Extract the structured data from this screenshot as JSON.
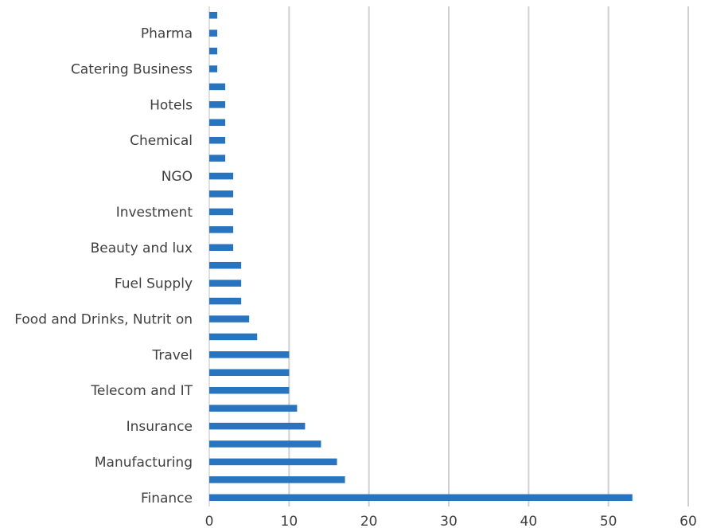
{
  "chart_data": {
    "type": "bar",
    "orientation": "horizontal",
    "grid": true,
    "bar_color": "#2874BF",
    "xlim": [
      0,
      60
    ],
    "x_ticks": [
      "0",
      "10",
      "20",
      "30",
      "40",
      "50",
      "60"
    ],
    "categories": [
      "Finance",
      "",
      "Manufacturing",
      "",
      "Insurance",
      "",
      "Telecom and IT",
      "",
      "Travel",
      "",
      "Food and Drinks, Nutrit on",
      "",
      "Fuel Supply",
      "",
      "Beauty and lux",
      "",
      "Investment",
      "",
      "NGO",
      "",
      "Chemical",
      "",
      "Hotels",
      "",
      "Catering Business",
      "",
      "Pharma",
      ""
    ],
    "values": [
      53,
      17,
      16,
      14,
      12,
      11,
      10,
      10,
      10,
      6,
      5,
      4,
      4,
      4,
      3,
      3,
      3,
      3,
      3,
      2,
      2,
      2,
      2,
      2,
      1,
      1,
      1,
      1
    ]
  }
}
